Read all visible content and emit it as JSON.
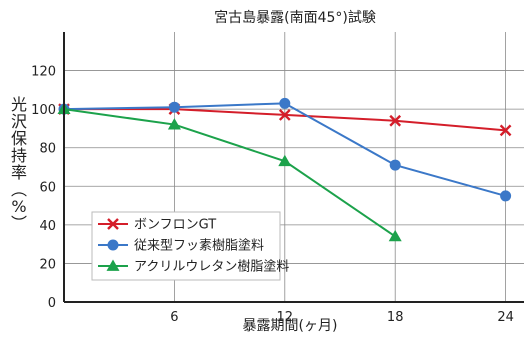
{
  "chart_data": {
    "type": "line",
    "title": "宮古島暴露(南面45°)試験",
    "xlabel": "暴露期間(ヶ月)",
    "ylabel_chars": [
      "光",
      "沢",
      "保",
      "持",
      "率",
      "︵",
      "%",
      "︶"
    ],
    "x": [
      0,
      6,
      12,
      18,
      24
    ],
    "x_tick_labels": [
      "6",
      "12",
      "18",
      "24"
    ],
    "x_tick_values": [
      6,
      12,
      18,
      24
    ],
    "xlim": [
      0,
      25
    ],
    "ylim": [
      0,
      140
    ],
    "y_tick_labels": [
      "0",
      "20",
      "40",
      "60",
      "80",
      "100",
      "120"
    ],
    "y_tick_values": [
      0,
      20,
      40,
      60,
      80,
      100,
      120
    ],
    "grid": true,
    "legend_position": "lower-left",
    "series": [
      {
        "name": "ボンフロンGT",
        "color": "#d41e2a",
        "marker": "x",
        "x": [
          0,
          6,
          12,
          18,
          24
        ],
        "values": [
          100,
          100,
          97,
          94,
          89
        ]
      },
      {
        "name": "従来型フッ素樹脂塗料",
        "color": "#3b78c8",
        "marker": "circle",
        "x": [
          0,
          6,
          12,
          18,
          24
        ],
        "values": [
          100,
          101,
          103,
          71,
          55
        ]
      },
      {
        "name": "アクリルウレタン樹脂塗料",
        "color": "#1ca24b",
        "marker": "triangle",
        "x": [
          0,
          6,
          12,
          18
        ],
        "values": [
          100,
          92,
          73,
          34
        ]
      }
    ]
  }
}
